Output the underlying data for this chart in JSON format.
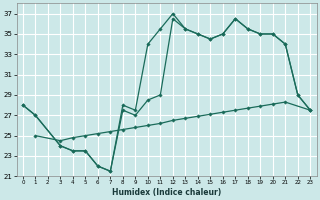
{
  "xlabel": "Humidex (Indice chaleur)",
  "bg_color": "#cce8e8",
  "grid_color": "#ffffff",
  "line_color": "#1a6b5a",
  "xlim": [
    -0.5,
    23.5
  ],
  "ylim": [
    21,
    38
  ],
  "xticks": [
    0,
    1,
    2,
    3,
    4,
    5,
    6,
    7,
    8,
    9,
    10,
    11,
    12,
    13,
    14,
    15,
    16,
    17,
    18,
    19,
    20,
    21,
    22,
    23
  ],
  "yticks": [
    21,
    23,
    25,
    27,
    29,
    31,
    33,
    35,
    37
  ],
  "line1_x": [
    0,
    1,
    3,
    4,
    5,
    6,
    7,
    8,
    9,
    10,
    11,
    12,
    13,
    14,
    15,
    16,
    17,
    18,
    19,
    20,
    21,
    22,
    23
  ],
  "line1_y": [
    28,
    27,
    24,
    23.5,
    23.5,
    22,
    21.5,
    28,
    27.5,
    34,
    35.5,
    37,
    35.5,
    35,
    34.5,
    35,
    36.5,
    35.5,
    35,
    35,
    34,
    29,
    27.5
  ],
  "line2_x": [
    0,
    1,
    3,
    4,
    5,
    6,
    7,
    8,
    9,
    10,
    11,
    12,
    13,
    14,
    15,
    16,
    17,
    18,
    19,
    20,
    21,
    22,
    23
  ],
  "line2_y": [
    28,
    27,
    24,
    23.5,
    23.5,
    22,
    21.5,
    27.5,
    27,
    28.5,
    29,
    36.5,
    35.5,
    35,
    34.5,
    35,
    36.5,
    35.5,
    35,
    35,
    34,
    29,
    27.5
  ],
  "line3_x": [
    1,
    3,
    4,
    5,
    6,
    7,
    8,
    9,
    10,
    11,
    12,
    13,
    14,
    15,
    16,
    17,
    18,
    19,
    20,
    21,
    23
  ],
  "line3_y": [
    25,
    24.5,
    24.8,
    25.0,
    25.2,
    25.4,
    25.6,
    25.8,
    26.0,
    26.2,
    26.5,
    26.7,
    26.9,
    27.1,
    27.3,
    27.5,
    27.7,
    27.9,
    28.1,
    28.3,
    27.5
  ]
}
